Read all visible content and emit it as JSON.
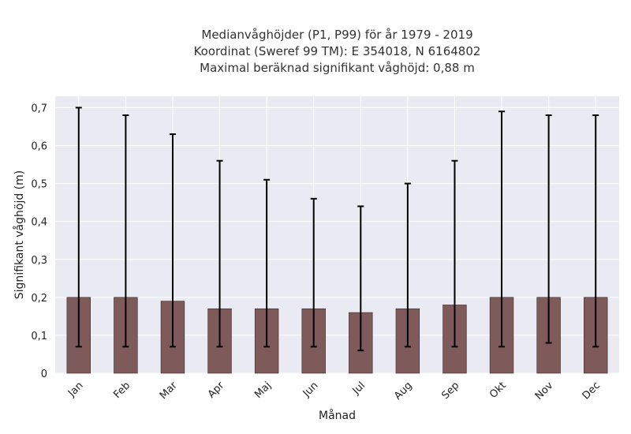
{
  "chart_data": {
    "type": "bar",
    "title_lines": [
      "Medianvåghöjder (P1, P99) för år 1979 - 2019",
      "Koordinat (Sweref 99 TM): E 354018, N 6164802",
      "Maximal beräknad signifikant våghöjd: 0,88 m"
    ],
    "xlabel": "Månad",
    "ylabel": "Signifikant våghöjd (m)",
    "categories": [
      "Jan",
      "Feb",
      "Mar",
      "Apr",
      "Maj",
      "Jun",
      "Jul",
      "Aug",
      "Sep",
      "Okt",
      "Nov",
      "Dec"
    ],
    "values": [
      0.2,
      0.2,
      0.19,
      0.17,
      0.17,
      0.17,
      0.16,
      0.17,
      0.18,
      0.2,
      0.2,
      0.2
    ],
    "error_low": [
      0.07,
      0.07,
      0.07,
      0.07,
      0.07,
      0.07,
      0.06,
      0.07,
      0.07,
      0.07,
      0.08,
      0.07
    ],
    "error_high": [
      0.7,
      0.68,
      0.63,
      0.56,
      0.51,
      0.46,
      0.44,
      0.5,
      0.56,
      0.69,
      0.68,
      0.68
    ],
    "ylim": [
      0,
      0.73
    ],
    "yticks": [
      0,
      0.1,
      0.2,
      0.3,
      0.4,
      0.5,
      0.6,
      0.7
    ],
    "ytick_labels": [
      "0",
      "0,1",
      "0,2",
      "0,3",
      "0,4",
      "0,5",
      "0,6",
      "0,7"
    ],
    "grid": true,
    "colors": {
      "bar": "#7f5a5a",
      "error": "#000000",
      "background": "#eaeaf2",
      "grid": "#ffffff"
    }
  }
}
